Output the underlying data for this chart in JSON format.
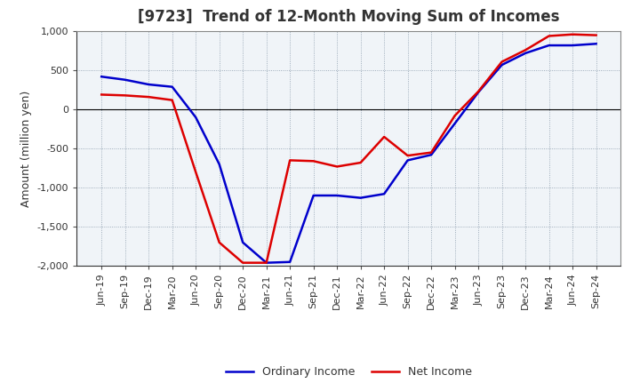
{
  "title": "[9723]  Trend of 12-Month Moving Sum of Incomes",
  "ylabel": "Amount (million yen)",
  "background_color": "#ffffff",
  "plot_bg_color": "#f0f4f8",
  "grid_color": "#8899aa",
  "ylim": [
    -2000,
    1000
  ],
  "yticks": [
    -2000,
    -1500,
    -1000,
    -500,
    0,
    500,
    1000
  ],
  "x_labels": [
    "Jun-19",
    "Sep-19",
    "Dec-19",
    "Mar-20",
    "Jun-20",
    "Sep-20",
    "Dec-20",
    "Mar-21",
    "Jun-21",
    "Sep-21",
    "Dec-21",
    "Mar-22",
    "Jun-22",
    "Sep-22",
    "Dec-22",
    "Mar-23",
    "Jun-23",
    "Sep-23",
    "Dec-23",
    "Mar-24",
    "Jun-24",
    "Sep-24"
  ],
  "ordinary_income": [
    420,
    380,
    320,
    290,
    -100,
    -700,
    -1700,
    -1960,
    -1950,
    -1100,
    -1100,
    -1130,
    -1080,
    -650,
    -580,
    -180,
    220,
    570,
    720,
    820,
    820,
    840
  ],
  "net_income": [
    190,
    180,
    160,
    120,
    -800,
    -1700,
    -1960,
    -1960,
    -650,
    -660,
    -730,
    -680,
    -350,
    -590,
    -550,
    -80,
    230,
    610,
    760,
    940,
    960,
    950
  ],
  "ordinary_color": "#0000cc",
  "net_color": "#dd0000",
  "legend_labels": [
    "Ordinary Income",
    "Net Income"
  ],
  "title_color": "#333333",
  "title_fontsize": 12,
  "axis_label_fontsize": 9,
  "tick_fontsize": 8
}
